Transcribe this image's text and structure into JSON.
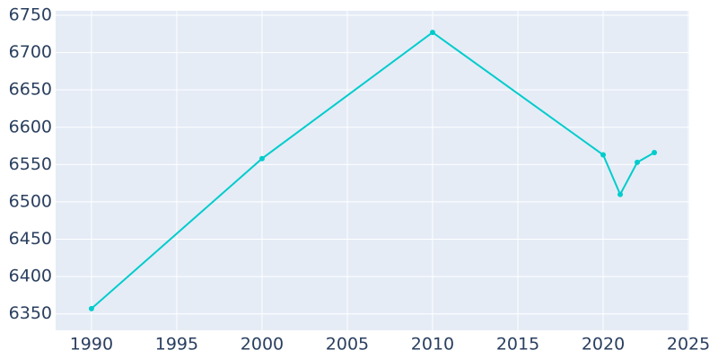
{
  "chart_data": {
    "type": "line",
    "x": [
      1990,
      2000,
      2010,
      2020,
      2021,
      2022,
      2023
    ],
    "values": [
      6357,
      6558,
      6727,
      6563,
      6510,
      6553,
      6566
    ],
    "color": "#00cccc",
    "xlim": [
      1987.9,
      2025.05
    ],
    "xticks": [
      1990,
      1995,
      2000,
      2005,
      2010,
      2015,
      2020,
      2025
    ],
    "ylim": [
      6328,
      6756
    ],
    "yticks": [
      6350,
      6400,
      6450,
      6500,
      6550,
      6600,
      6650,
      6700,
      6750
    ],
    "grid": true,
    "markers": true
  }
}
